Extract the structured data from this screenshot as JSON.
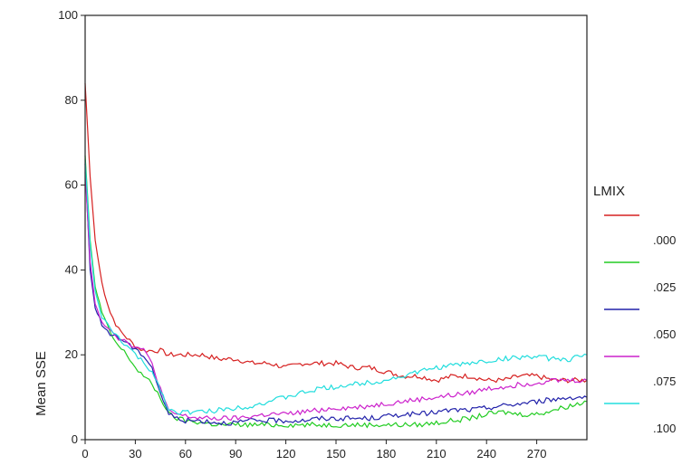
{
  "chart_data": {
    "type": "line",
    "title": "",
    "xlabel": "",
    "ylabel": "Mean SSE",
    "xlim": [
      0,
      300
    ],
    "ylim": [
      0,
      100
    ],
    "xticks": [
      0,
      30,
      60,
      90,
      120,
      150,
      180,
      210,
      240,
      270
    ],
    "yticks": [
      0,
      20,
      40,
      60,
      80,
      100
    ],
    "grid": false,
    "legend": {
      "title": "LMIX",
      "placement": "right",
      "labels": [
        ".000",
        ".025",
        ".050",
        ".075",
        ".100"
      ]
    },
    "series": [
      {
        "name": ".000",
        "color": "#d62020",
        "x": [
          0,
          3,
          6,
          10,
          15,
          20,
          25,
          30,
          35,
          40,
          45,
          50,
          60,
          70,
          80,
          90,
          100,
          110,
          120,
          130,
          140,
          150,
          160,
          170,
          180,
          190,
          200,
          210,
          220,
          230,
          240,
          250,
          260,
          270,
          280,
          290,
          300
        ],
        "y": [
          84,
          62,
          47,
          37,
          30,
          26,
          24,
          22,
          21,
          21,
          21,
          20,
          20,
          20,
          19,
          19,
          18,
          18,
          17,
          18,
          18,
          18,
          17,
          17,
          16,
          15,
          15,
          14,
          15,
          15,
          14,
          14,
          15,
          15,
          14,
          14,
          14
        ]
      },
      {
        "name": ".025",
        "color": "#22cc22",
        "x": [
          0,
          3,
          6,
          10,
          15,
          20,
          25,
          30,
          35,
          40,
          45,
          50,
          55,
          60,
          70,
          80,
          90,
          100,
          110,
          120,
          130,
          140,
          150,
          160,
          170,
          180,
          190,
          200,
          210,
          220,
          230,
          240,
          250,
          260,
          270,
          280,
          290,
          300
        ],
        "y": [
          67,
          47,
          36,
          30,
          25,
          22,
          20,
          17,
          15,
          13,
          10,
          6,
          5,
          4.5,
          4,
          3.5,
          3.5,
          3.5,
          3.5,
          3.5,
          3.5,
          3.5,
          3.5,
          3.5,
          3.5,
          3.5,
          3.5,
          3.5,
          4,
          4.5,
          5,
          6,
          6.5,
          6,
          6,
          7,
          8,
          9
        ]
      },
      {
        "name": ".050",
        "color": "#2222aa",
        "x": [
          0,
          3,
          6,
          10,
          15,
          20,
          25,
          30,
          35,
          40,
          45,
          50,
          55,
          60,
          70,
          80,
          90,
          100,
          110,
          120,
          130,
          140,
          150,
          160,
          170,
          180,
          190,
          200,
          210,
          220,
          230,
          240,
          250,
          260,
          270,
          280,
          290,
          300
        ],
        "y": [
          65,
          40,
          31,
          27,
          25,
          24,
          23,
          21,
          20,
          17,
          11,
          6,
          5,
          4.5,
          4.5,
          4,
          4,
          4.5,
          4.5,
          4.5,
          4.5,
          5,
          5,
          5,
          5,
          5.5,
          6,
          6,
          6.5,
          7,
          7,
          7.5,
          8,
          8.5,
          9,
          9.5,
          10,
          10
        ]
      },
      {
        "name": ".075",
        "color": "#cc22cc",
        "x": [
          0,
          3,
          6,
          10,
          15,
          20,
          25,
          30,
          35,
          40,
          45,
          50,
          55,
          60,
          70,
          80,
          90,
          100,
          110,
          120,
          130,
          140,
          150,
          160,
          170,
          180,
          190,
          200,
          210,
          220,
          230,
          240,
          250,
          260,
          270,
          280,
          290,
          300
        ],
        "y": [
          63,
          42,
          32,
          28,
          26,
          24,
          23,
          22,
          21,
          18,
          12,
          6.5,
          6,
          5.5,
          5,
          5,
          5,
          5.5,
          6,
          6,
          6.5,
          7,
          7.5,
          7.5,
          8,
          8.5,
          9,
          9.5,
          10,
          10.5,
          11,
          12,
          12.5,
          13,
          13.5,
          14,
          14,
          14
        ]
      },
      {
        "name": ".100",
        "color": "#22dddd",
        "x": [
          0,
          3,
          6,
          10,
          15,
          20,
          25,
          30,
          35,
          40,
          45,
          50,
          55,
          60,
          70,
          80,
          90,
          100,
          110,
          120,
          130,
          140,
          150,
          160,
          170,
          180,
          190,
          200,
          210,
          220,
          230,
          240,
          250,
          260,
          270,
          280,
          290,
          300
        ],
        "y": [
          66,
          46,
          35,
          29,
          26,
          24,
          22,
          20,
          18,
          16,
          12,
          7,
          6.5,
          6.5,
          6.5,
          7,
          7.5,
          8,
          9,
          10,
          11,
          12,
          12.5,
          13,
          13.5,
          14,
          15,
          16,
          17,
          17.5,
          18,
          18.5,
          19,
          19.5,
          19.5,
          19,
          19,
          20
        ]
      }
    ]
  }
}
